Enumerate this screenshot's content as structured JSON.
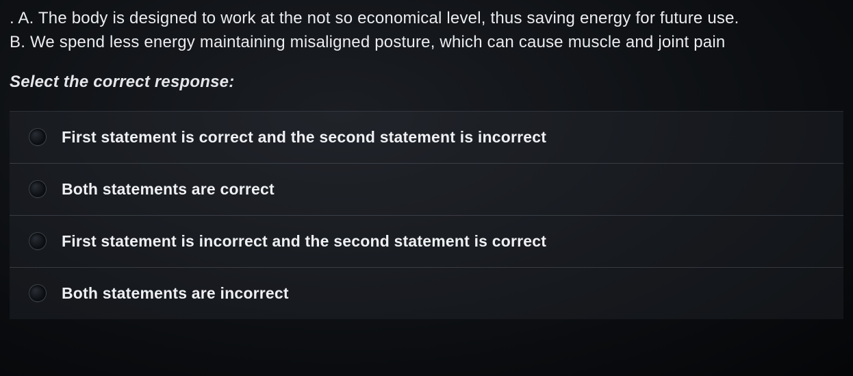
{
  "statements": {
    "a": ". A. The body is designed to work at the not so economical level, thus saving energy for future use.",
    "b": "B. We spend less energy maintaining misaligned posture, which can cause muscle and joint pain"
  },
  "prompt": "Select the correct response:",
  "options": [
    {
      "label": "First statement is correct and the second statement is incorrect"
    },
    {
      "label": "Both statements are correct"
    },
    {
      "label": "First statement is incorrect and the second statement is correct"
    },
    {
      "label": "Both statements are incorrect"
    }
  ],
  "colors": {
    "text": "#e8e8e8",
    "background_center": "#1a1d22",
    "background_edge": "#050608",
    "divider": "rgba(140,150,160,0.28)",
    "radio_border": "rgba(90,98,108,0.6)"
  },
  "typography": {
    "statement_fontsize": 24,
    "prompt_fontsize": 24,
    "option_fontsize": 23,
    "prompt_style": "italic",
    "option_weight": 600
  }
}
